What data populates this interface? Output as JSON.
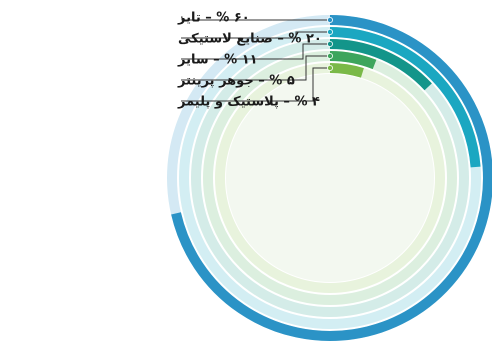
{
  "chart_data": {
    "type": "radial-bar",
    "unit": "%",
    "series": [
      {
        "label": "تایر",
        "display_value": "۶۰",
        "value": 60,
        "color": "#2b93c6",
        "track": "#d4e9f4"
      },
      {
        "label": "صنایع لاستیکی",
        "display_value": "۲۰",
        "value": 20,
        "color": "#1ba7c1",
        "track": "#d3eef3"
      },
      {
        "label": "سایر",
        "display_value": "۱۱",
        "value": 11,
        "color": "#13958a",
        "track": "#d4ece8"
      },
      {
        "label": "جوهر پرینتر",
        "display_value": "۵",
        "value": 5,
        "color": "#3da55c",
        "track": "#dcefdf"
      },
      {
        "label": "پلاستیک و پلیمر",
        "display_value": "۴",
        "value": 4,
        "color": "#7ab948",
        "track": "#e8f3dd"
      }
    ]
  }
}
